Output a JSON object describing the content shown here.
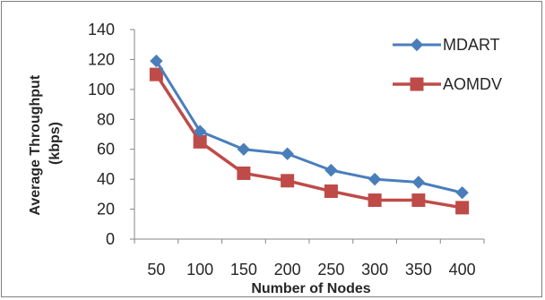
{
  "chart_data": {
    "type": "line",
    "title": "",
    "xlabel": "Number of Nodes",
    "ylabel": "Average Throughput (kbps)",
    "ylabel_lines": [
      "Average Throughput",
      "(kbps)"
    ],
    "categories": [
      "50",
      "100",
      "150",
      "200",
      "250",
      "300",
      "350",
      "400"
    ],
    "ylim": [
      0,
      140
    ],
    "yticks": [
      0,
      20,
      40,
      60,
      80,
      100,
      120,
      140
    ],
    "grid": false,
    "legend_position": "top-right",
    "series": [
      {
        "name": "MDART",
        "color": "#4a7ebb",
        "marker": "diamond",
        "values": [
          119,
          72,
          60,
          57,
          46,
          40,
          38,
          31
        ]
      },
      {
        "name": "AOMDV",
        "color": "#be4b48",
        "marker": "square",
        "values": [
          110,
          65,
          44,
          39,
          32,
          26,
          26,
          21
        ]
      }
    ]
  }
}
